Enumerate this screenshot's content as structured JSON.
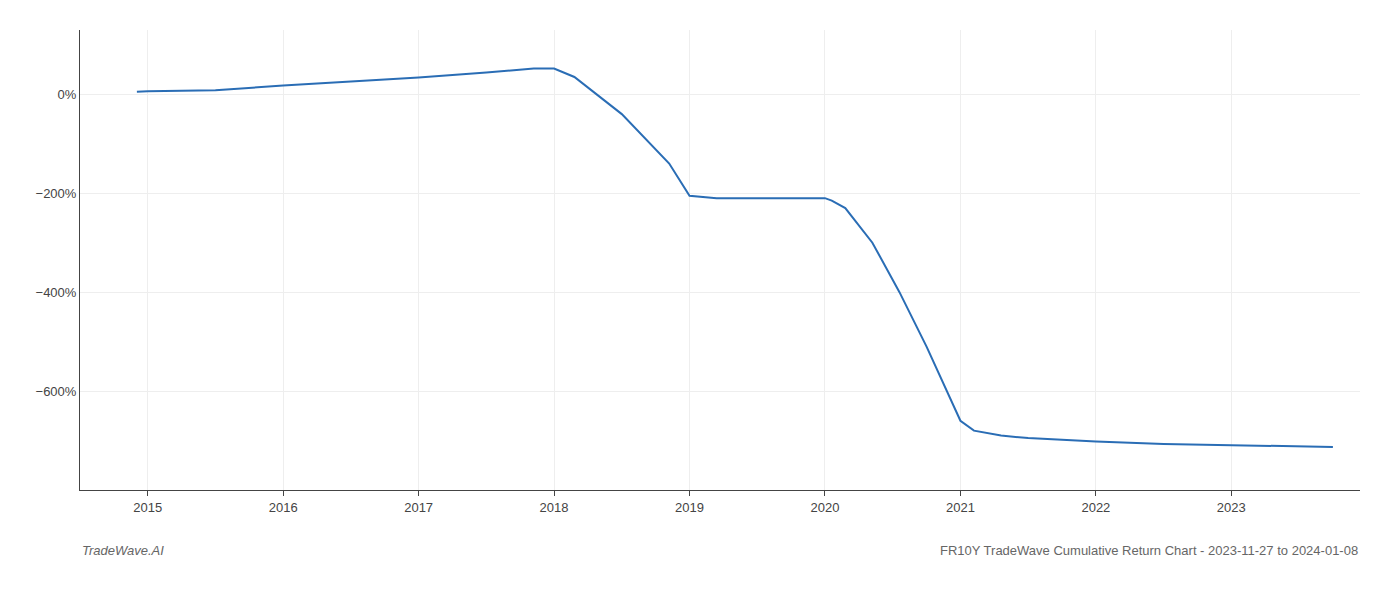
{
  "chart_data": {
    "type": "line",
    "x": [
      2014.92,
      2015.0,
      2015.5,
      2016.0,
      2016.5,
      2017.0,
      2017.5,
      2017.85,
      2018.0,
      2018.15,
      2018.5,
      2018.85,
      2019.0,
      2019.2,
      2019.5,
      2019.8,
      2020.0,
      2020.05,
      2020.15,
      2020.35,
      2020.55,
      2020.75,
      2021.0,
      2021.1,
      2021.3,
      2021.5,
      2021.8,
      2022.0,
      2022.5,
      2023.0,
      2023.5,
      2023.75
    ],
    "values": [
      5.0,
      6.0,
      8.0,
      18.0,
      26.0,
      34.0,
      44.0,
      52.0,
      52.0,
      35.0,
      -40.0,
      -140.0,
      -205.0,
      -210.0,
      -210.0,
      -210.0,
      -210.0,
      -215.0,
      -230.0,
      -300.0,
      -400.0,
      -510.0,
      -660.0,
      -680.0,
      -690.0,
      -695.0,
      -700.0,
      -702.0,
      -707.0,
      -710.0,
      -712.0,
      -713.0
    ],
    "color": "#2a6db5",
    "xlim": [
      2014.5,
      2023.95
    ],
    "xticks": [
      2015,
      2016,
      2017,
      2018,
      2019,
      2020,
      2021,
      2022,
      2023
    ],
    "ylim": [
      -800,
      130
    ],
    "yticks": [
      {
        "value": 0,
        "label": "0%"
      },
      {
        "value": -200,
        "label": "−200%"
      },
      {
        "value": -400,
        "label": "−400%"
      },
      {
        "value": -600,
        "label": "−600%"
      }
    ],
    "grid": true,
    "annotations": [
      "TradeWave.AI",
      "FR10Y TradeWave Cumulative Return Chart - 2023-11-27 to 2024-01-08"
    ]
  }
}
